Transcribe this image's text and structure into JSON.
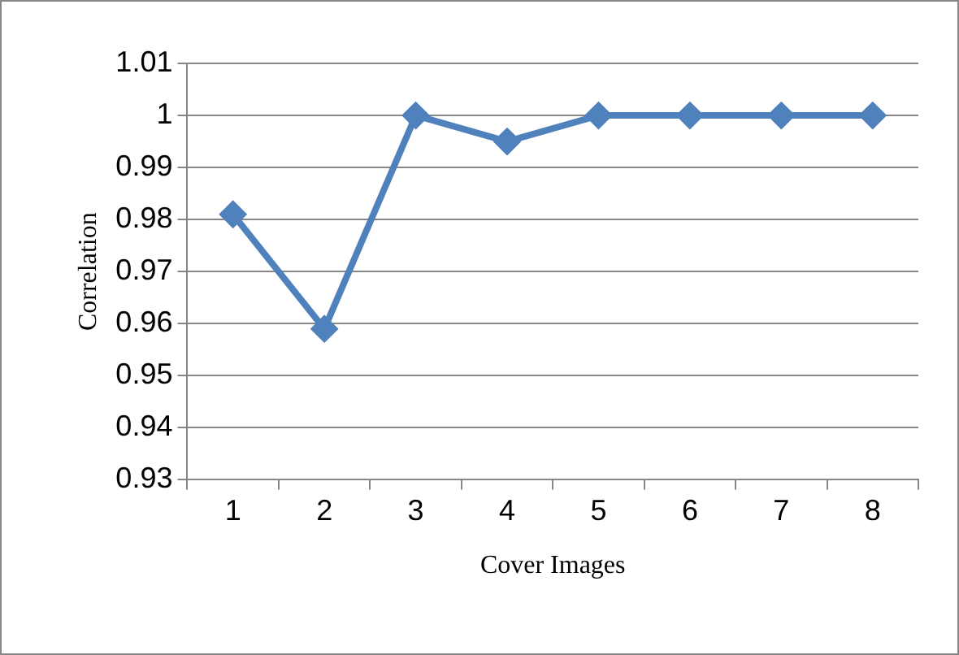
{
  "chart_data": {
    "type": "line",
    "xlabel": "Cover Images",
    "ylabel": "Correlation",
    "categories": [
      "1",
      "2",
      "3",
      "4",
      "5",
      "6",
      "7",
      "8"
    ],
    "series": [
      {
        "color": "#4f81bd",
        "values": [
          0.981,
          0.959,
          1.0,
          0.995,
          1.0,
          1.0,
          1.0,
          1.0
        ]
      }
    ],
    "ylim": [
      0.93,
      1.01
    ],
    "yticks": [
      {
        "value": 0.93,
        "label": "0.93"
      },
      {
        "value": 0.94,
        "label": "0.94"
      },
      {
        "value": 0.95,
        "label": "0.95"
      },
      {
        "value": 0.96,
        "label": "0.96"
      },
      {
        "value": 0.97,
        "label": "0.97"
      },
      {
        "value": 0.98,
        "label": "0.98"
      },
      {
        "value": 0.99,
        "label": "0.99"
      },
      {
        "value": 1,
        "label": "1"
      },
      {
        "value": 1.01,
        "label": "1.01"
      }
    ],
    "grid": "y",
    "legend": false,
    "marker": "diamond",
    "line_style": "solid"
  }
}
